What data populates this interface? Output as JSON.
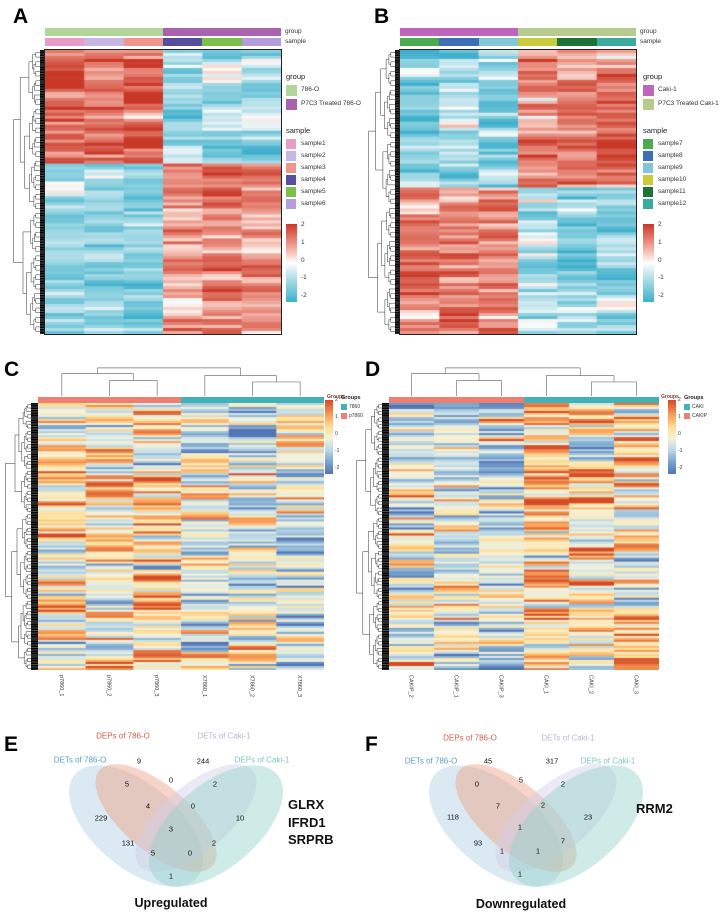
{
  "panel_letters": [
    "A",
    "B",
    "C",
    "D",
    "E",
    "F"
  ],
  "chart_data": [
    {
      "panel": "A",
      "type": "heatmap",
      "columns": [
        "sample1",
        "sample2",
        "sample3",
        "sample4",
        "sample5",
        "sample6"
      ],
      "annotation_rows": [
        "group",
        "sample"
      ],
      "column_groups": [
        "786-O",
        "786-O",
        "786-O",
        "P7C3 Treated 786-O",
        "P7C3 Treated 786-O",
        "P7C3 Treated 786-O"
      ],
      "legend": {
        "group_title": "group",
        "groups": [
          {
            "label": "786-O",
            "color": "#b2d69a"
          },
          {
            "label": "P7C3 Treated 786-O",
            "color": "#a962ae"
          }
        ],
        "sample_title": "sample",
        "samples": [
          {
            "label": "sample1",
            "color": "#e79ec6"
          },
          {
            "label": "sample2",
            "color": "#c6b7e2"
          },
          {
            "label": "sample3",
            "color": "#f0958a"
          },
          {
            "label": "sample4",
            "color": "#564fa0"
          },
          {
            "label": "sample5",
            "color": "#7cbf4b"
          },
          {
            "label": "sample6",
            "color": "#b39ddb"
          }
        ]
      },
      "colorbar_ticks": [
        "2",
        "1",
        "0",
        "-1",
        "-2"
      ],
      "colorbar_range": [
        2,
        -2
      ],
      "colormap": "red-white-cyan",
      "rows": 95,
      "noise": 0.8,
      "ar": 0.55,
      "row_blocks": [
        {
          "fraction": 0.4,
          "column_means": [
            1.25,
            1.2,
            1.3,
            -0.95,
            -0.9,
            -0.95
          ]
        },
        {
          "fraction": 0.6,
          "column_means": [
            -0.95,
            -0.9,
            -0.9,
            1.15,
            1.05,
            0.95
          ]
        }
      ]
    },
    {
      "panel": "B",
      "type": "heatmap",
      "columns": [
        "sample7",
        "sample8",
        "sample9",
        "sample10",
        "sample11",
        "sample12"
      ],
      "annotation_rows": [
        "group",
        "sample"
      ],
      "column_groups": [
        "Caki-1",
        "Caki-1",
        "Caki-1",
        "P7C3 Treated Caki-1",
        "P7C3 Treated Caki-1",
        "P7C3 Treated Caki-1"
      ],
      "legend": {
        "group_title": "group",
        "groups": [
          {
            "label": "Caki-1",
            "color": "#bd66ba"
          },
          {
            "label": "P7C3 Treated Caki-1",
            "color": "#b5cc8e"
          }
        ],
        "sample_title": "sample",
        "samples": [
          {
            "label": "sample7",
            "color": "#4cab51"
          },
          {
            "label": "sample8",
            "color": "#3c6fb5"
          },
          {
            "label": "sample9",
            "color": "#82c7d8"
          },
          {
            "label": "sample10",
            "color": "#c8cc3c"
          },
          {
            "label": "sample11",
            "color": "#1d7235"
          },
          {
            "label": "sample12",
            "color": "#3aab9c"
          }
        ]
      },
      "colorbar_ticks": [
        "2",
        "1",
        "0",
        "-1",
        "-2"
      ],
      "colorbar_range": [
        2,
        -2
      ],
      "colormap": "red-white-cyan",
      "rows": 95,
      "noise": 0.8,
      "ar": 0.55,
      "row_blocks": [
        {
          "fraction": 0.48,
          "column_means": [
            -0.95,
            -0.9,
            -0.95,
            1.05,
            1.15,
            1.2
          ]
        },
        {
          "fraction": 0.52,
          "column_means": [
            1.2,
            1.25,
            1.15,
            -0.9,
            -0.9,
            -0.85
          ]
        }
      ]
    },
    {
      "panel": "C",
      "type": "heatmap",
      "columns": [
        "p7860_1",
        "p7860_2",
        "p7860_3",
        "X7860_1",
        "X7860_2",
        "X7860_3"
      ],
      "annotation_label": "Groups",
      "column_annotation": [
        "p7860",
        "p7860",
        "p7860",
        "7860",
        "7860",
        "7860"
      ],
      "legend": {
        "title": "Groups",
        "items": [
          {
            "label": "7860",
            "color": "#3fb3b8"
          },
          {
            "label": "p7860",
            "color": "#ef7e72"
          }
        ]
      },
      "colorbar_ticks": [
        "2",
        "1",
        "0",
        "-1",
        "-2"
      ],
      "colorbar_range": [
        2,
        -2
      ],
      "colormap": "RdYlBu",
      "rows": 133,
      "noise": 1.6,
      "ar": 0.5,
      "row_blocks": [
        {
          "fraction": 1.0,
          "column_means": [
            0.5,
            0.35,
            0.3,
            0.0,
            -0.2,
            -0.35
          ]
        }
      ]
    },
    {
      "panel": "D",
      "type": "heatmap",
      "columns": [
        "CAKIP_2",
        "CAKIP_1",
        "CAKIP_3",
        "CAKI_1",
        "CAKI_2",
        "CAKI_3"
      ],
      "annotation_label": "Groups",
      "column_annotation": [
        "CAKIP",
        "CAKIP",
        "CAKIP",
        "CAKI",
        "CAKI",
        "CAKI"
      ],
      "legend": {
        "title": "Groups",
        "items": [
          {
            "label": "CAKI",
            "color": "#3fb3b8"
          },
          {
            "label": "CAKIP",
            "color": "#ef7e72"
          }
        ]
      },
      "colorbar_ticks": [
        "2",
        "1",
        "0",
        "-1",
        "-2"
      ],
      "colorbar_range": [
        2,
        -2
      ],
      "colormap": "RdYlBu",
      "rows": 133,
      "noise": 1.6,
      "ar": 0.5,
      "row_blocks": [
        {
          "fraction": 1.0,
          "column_means": [
            -0.3,
            -0.05,
            -0.15,
            0.5,
            0.35,
            0.3
          ]
        }
      ]
    },
    {
      "panel": "E",
      "type": "venn",
      "caption": "Upregulated",
      "highlight_genes": [
        "GLRX",
        "IFRD1",
        "SRPRB"
      ],
      "sets": [
        {
          "name": "DETs of 786-O",
          "color": "#5b9ec9",
          "fill": "#aecfe2"
        },
        {
          "name": "DEPs of 786-O",
          "color": "#cf5f4a",
          "fill": "#eda083"
        },
        {
          "name": "DETs of Caki-1",
          "color": "#b8b6cf",
          "fill": "#d3cfe8"
        },
        {
          "name": "DEPs of Caki-1",
          "color": "#7cc7c0",
          "fill": "#93d2c9"
        }
      ],
      "regions": {
        "A": 229,
        "B": 9,
        "C": 244,
        "D": 10,
        "AB": 5,
        "BC": 0,
        "CD": 2,
        "AC": 131,
        "BD": 2,
        "AD": 1,
        "ABC": 4,
        "BCD": 0,
        "ACD": 5,
        "ABD": 0,
        "ABCD": 3
      }
    },
    {
      "panel": "F",
      "type": "venn",
      "caption": "Downregulated",
      "highlight_genes": [
        "RRM2"
      ],
      "sets": [
        {
          "name": "DETs of 786-O",
          "color": "#5b9ec9",
          "fill": "#aecfe2"
        },
        {
          "name": "DEPs of 786-O",
          "color": "#cf5f4a",
          "fill": "#eda083"
        },
        {
          "name": "DETs of Caki-1",
          "color": "#b8b6cf",
          "fill": "#d3cfe8"
        },
        {
          "name": "DEPs of Caki-1",
          "color": "#7cc7c0",
          "fill": "#93d2c9"
        }
      ],
      "regions": {
        "A": 118,
        "B": 45,
        "C": 317,
        "D": 23,
        "AB": 0,
        "BC": 5,
        "CD": 2,
        "AC": 93,
        "BD": 7,
        "AD": 1,
        "ABC": 7,
        "BCD": 2,
        "ACD": 1,
        "ABD": 1,
        "ABCD": 1
      }
    }
  ]
}
